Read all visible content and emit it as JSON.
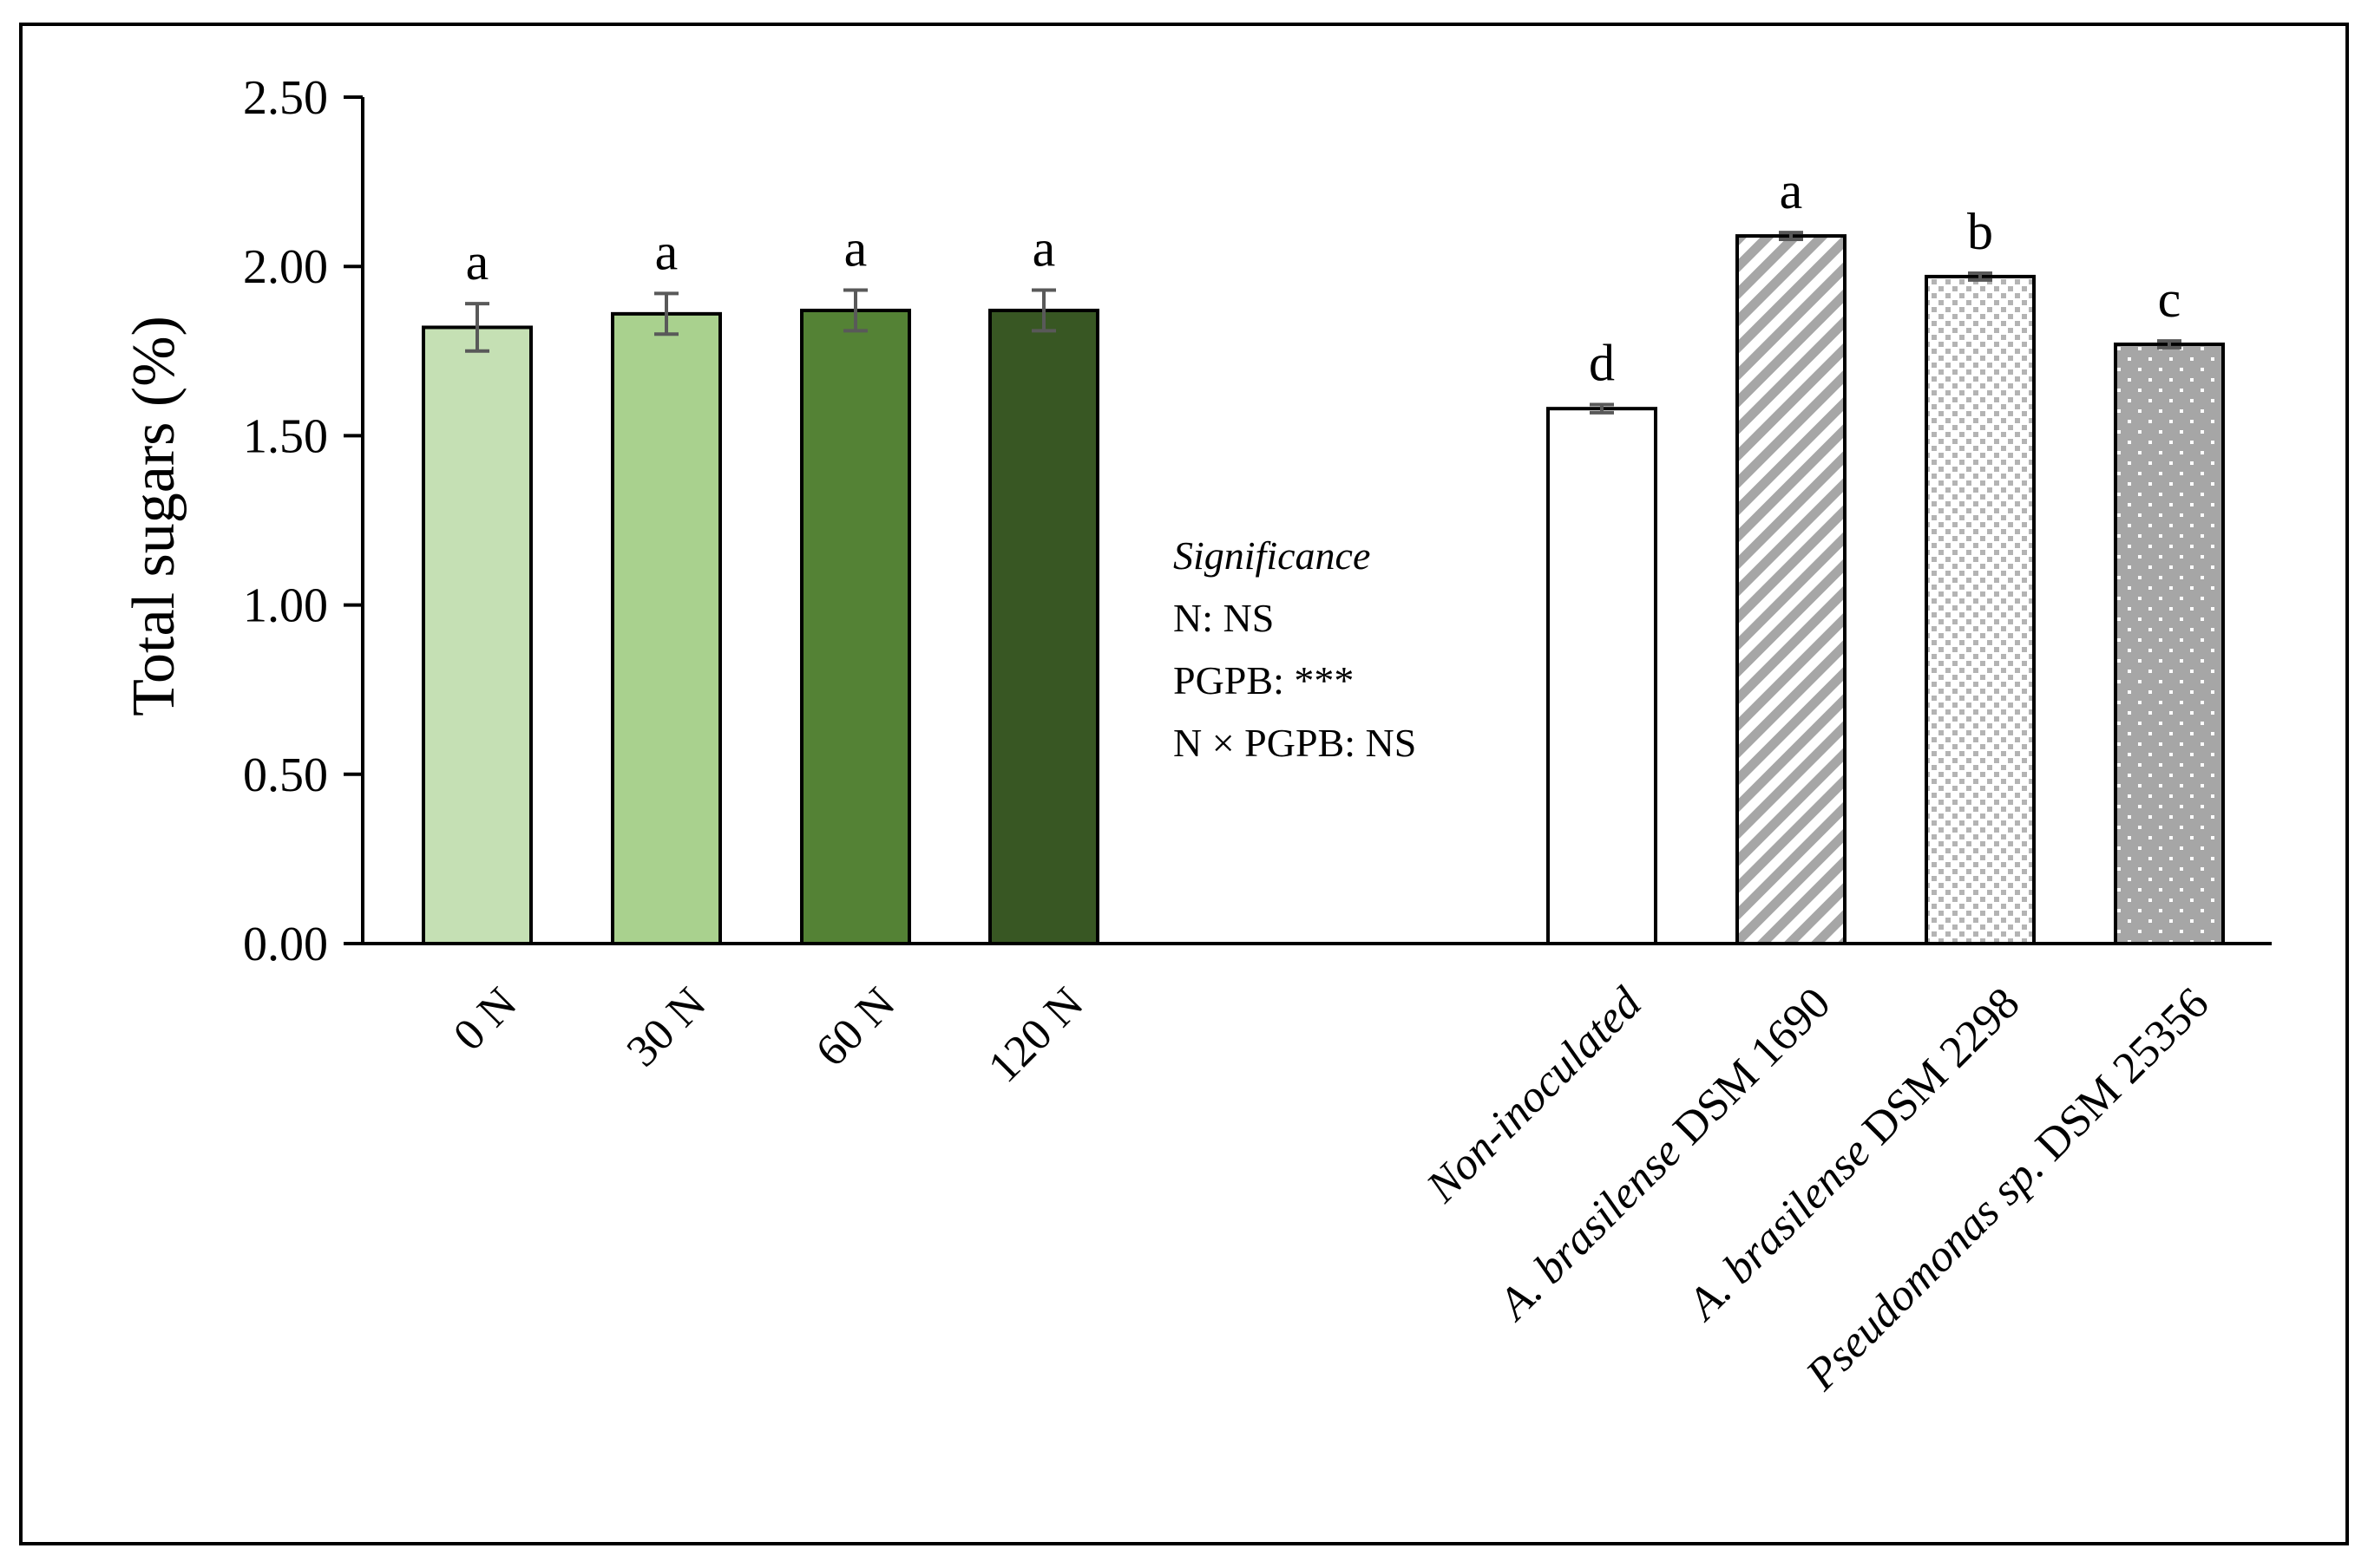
{
  "chart_data": {
    "type": "bar",
    "ylabel": "Total sugars (%)",
    "ylim": [
      0,
      2.5
    ],
    "yticks": [
      "0.00",
      "0.50",
      "1.00",
      "1.50",
      "2.00",
      "2.50"
    ],
    "groups": [
      {
        "name": "N",
        "categories": [
          {
            "label": "0 N",
            "italic_part": "",
            "rest": "0 N"
          },
          {
            "label": "30 N",
            "italic_part": "",
            "rest": "30 N"
          },
          {
            "label": "60 N",
            "italic_part": "",
            "rest": "60 N"
          },
          {
            "label": "120 N",
            "italic_part": "",
            "rest": "120 N"
          }
        ],
        "values": [
          1.82,
          1.86,
          1.87,
          1.87
        ],
        "errors": [
          0.07,
          0.06,
          0.06,
          0.06
        ],
        "letters": [
          "a",
          "a",
          "a",
          "a"
        ],
        "fills": [
          "#c5e0b4",
          "#a9d18e",
          "#548235",
          "#385723"
        ]
      },
      {
        "name": "PGPB",
        "categories": [
          {
            "label": "Non-inoculated",
            "italic_part": "Non-inoculated",
            "rest": ""
          },
          {
            "label": "A. brasilense DSM 1690",
            "italic_part": "A. brasilense",
            "rest": " DSM 1690"
          },
          {
            "label": "A. brasilense DSM 2298",
            "italic_part": "A. brasilense",
            "rest": " DSM 2298"
          },
          {
            "label": "Pseudomonas sp. DSM 25356",
            "italic_part": "Pseudomonas sp.",
            "rest": " DSM 25356"
          }
        ],
        "values": [
          1.58,
          2.09,
          1.97,
          1.77
        ],
        "errors": [
          0.012,
          0.01,
          0.01,
          0.01
        ],
        "letters": [
          "d",
          "a",
          "b",
          "c"
        ],
        "patterns": [
          "none",
          "diagonal",
          "checker",
          "dots"
        ]
      }
    ],
    "significance": {
      "title": "Significance",
      "lines": [
        "N: NS",
        "PGPB: ***",
        "N × PGPB: NS"
      ]
    }
  }
}
